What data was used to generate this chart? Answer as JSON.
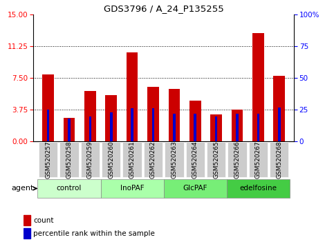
{
  "title": "GDS3796 / A_24_P135255",
  "samples": [
    "GSM520257",
    "GSM520258",
    "GSM520259",
    "GSM520260",
    "GSM520261",
    "GSM520262",
    "GSM520263",
    "GSM520264",
    "GSM520265",
    "GSM520266",
    "GSM520267",
    "GSM520268"
  ],
  "count_values": [
    7.9,
    2.8,
    6.0,
    5.5,
    10.5,
    6.5,
    6.2,
    4.8,
    3.2,
    3.8,
    12.8,
    7.8
  ],
  "percentile_values": [
    25,
    18,
    20,
    23,
    26,
    26,
    22,
    22,
    20,
    22,
    22,
    27
  ],
  "groups": [
    {
      "label": "control",
      "start": 0,
      "end": 3,
      "color": "#ccffcc"
    },
    {
      "label": "InoPAF",
      "start": 3,
      "end": 6,
      "color": "#aaffaa"
    },
    {
      "label": "GlcPAF",
      "start": 6,
      "end": 9,
      "color": "#77ee77"
    },
    {
      "label": "edelfosine",
      "start": 9,
      "end": 12,
      "color": "#44cc44"
    }
  ],
  "ylim_left": [
    0,
    15
  ],
  "ylim_right": [
    0,
    100
  ],
  "yticks_left": [
    0,
    3.75,
    7.5,
    11.25,
    15
  ],
  "yticks_right": [
    0,
    25,
    50,
    75,
    100
  ],
  "bar_color": "#cc0000",
  "percentile_color": "#0000cc",
  "bar_width": 0.55,
  "percentile_bar_width": 0.12,
  "grid_color": "black",
  "legend_items": [
    "count",
    "percentile rank within the sample"
  ],
  "legend_colors": [
    "#cc0000",
    "#0000cc"
  ],
  "tick_bg_color": "#cccccc",
  "xlim": [
    -0.7,
    11.7
  ]
}
